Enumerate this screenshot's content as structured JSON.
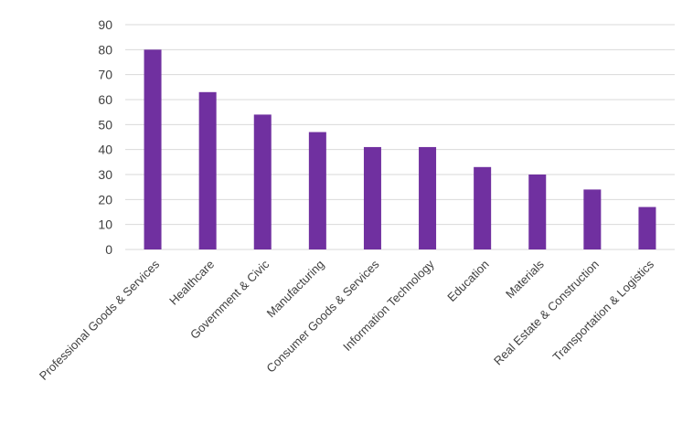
{
  "chart_data": {
    "type": "bar",
    "title": "",
    "xlabel": "",
    "ylabel": "",
    "categories": [
      "Professional Goods & Services",
      "Healthcare",
      "Government & Civic",
      "Manufacturing",
      "Consumer Goods & Services",
      "Information Technology",
      "Education",
      "Materials",
      "Real Estate & Construction",
      "Transportation & Logistics"
    ],
    "values": [
      80,
      63,
      54,
      47,
      41,
      41,
      33,
      30,
      24,
      17
    ],
    "ylim": [
      0,
      90
    ],
    "yticks": [
      0,
      10,
      20,
      30,
      40,
      50,
      60,
      70,
      80,
      90
    ],
    "grid": true,
    "legend": "none",
    "bar_color": "#7030A0",
    "grid_color": "#d9d9d9"
  }
}
